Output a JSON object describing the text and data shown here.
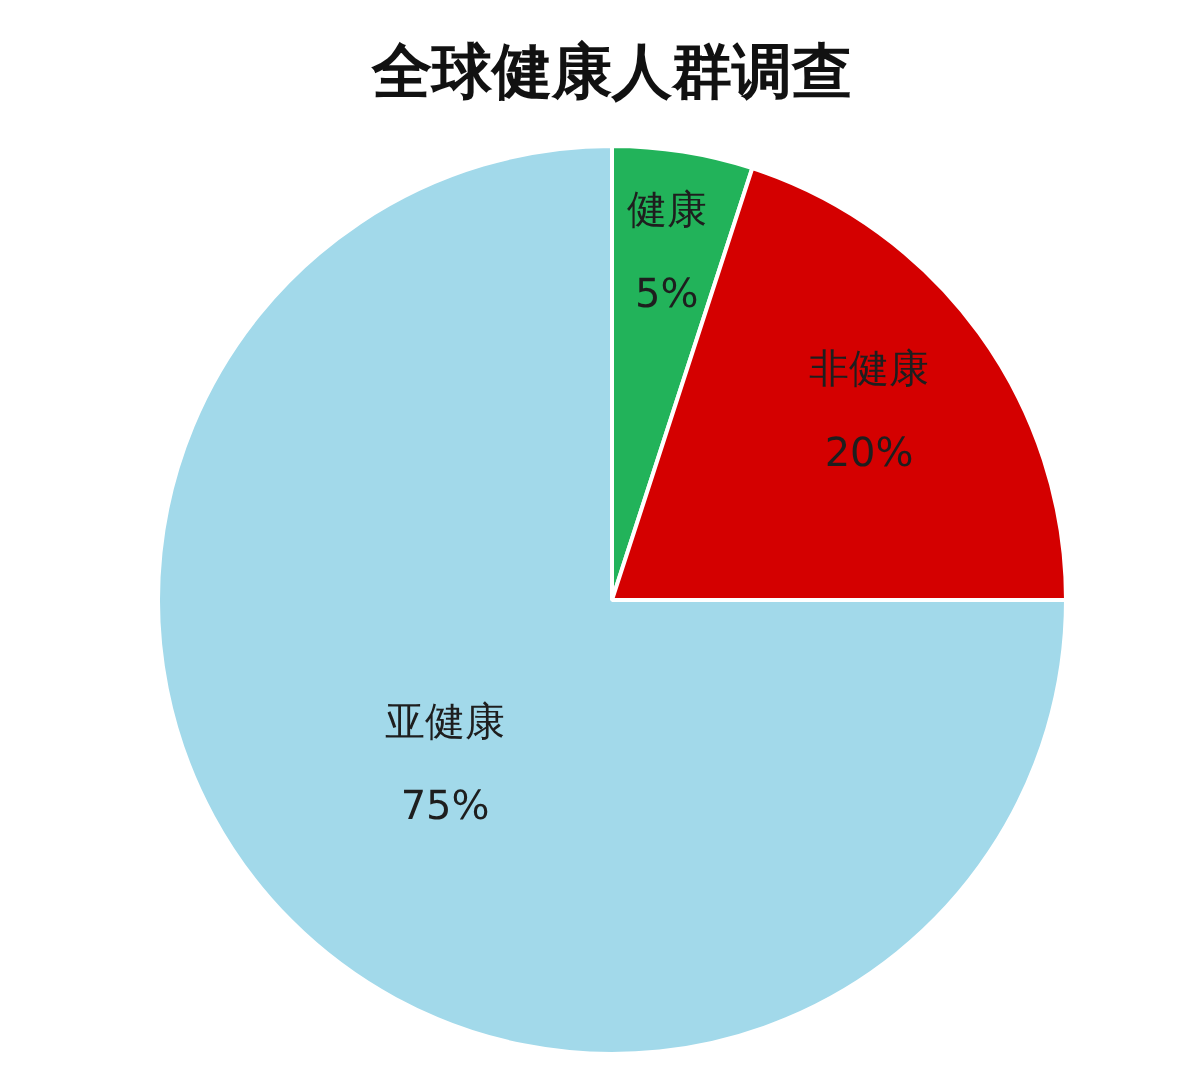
{
  "chart_data": {
    "type": "pie",
    "title": "全球健康人群调查",
    "categories": [
      "健康",
      "非健康",
      "亚健康"
    ],
    "values": [
      5,
      20,
      75
    ],
    "colors": [
      "#22b35a",
      "#d40000",
      "#a2d9ea"
    ],
    "value_labels": [
      "5%",
      "20%",
      "75%"
    ],
    "legend": false
  }
}
